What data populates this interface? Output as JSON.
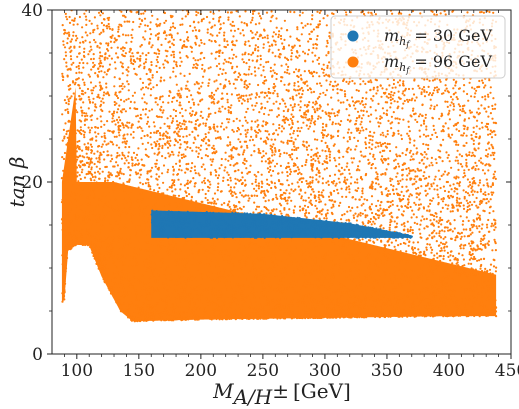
{
  "chart_data": {
    "type": "scatter",
    "xlabel": "M_{A/H±} [GeV]",
    "ylabel": "tan β",
    "xlim": [
      80,
      450
    ],
    "ylim": [
      0,
      40
    ],
    "x_ticks": [
      "100",
      "150",
      "200",
      "250",
      "300",
      "350",
      "400",
      "450"
    ],
    "y_ticks": [
      "0",
      "20",
      "40"
    ],
    "legend_position": "top-right",
    "series": [
      {
        "name": "m_{h_f} = 30 GeV",
        "legend_main": "m",
        "legend_sub": "h",
        "legend_subsub": "f",
        "legend_rest": " = 30 GeV",
        "color": "#1f77b4",
        "region": {
          "x_range": [
            160,
            370
          ],
          "y_lower": [
            [
              160,
              13.5
            ],
            [
              370,
              13.5
            ]
          ],
          "y_upper": [
            [
              160,
              16.7
            ],
            [
              250,
              16.3
            ],
            [
              320,
              15.2
            ],
            [
              370,
              13.8
            ]
          ]
        }
      },
      {
        "name": "m_{h_f} = 96 GeV",
        "legend_main": "m",
        "legend_sub": "h",
        "legend_subsub": "f",
        "legend_rest": " = 96 GeV",
        "color": "#ff7f0e",
        "region": {
          "x_range": [
            88,
            438
          ],
          "y_lower": [
            [
              88,
              6.0
            ],
            [
              90,
              6.3
            ],
            [
              93,
              12.0
            ],
            [
              100,
              12.7
            ],
            [
              110,
              12.6
            ],
            [
              120,
              9.0
            ],
            [
              135,
              5.0
            ],
            [
              145,
              3.8
            ],
            [
              200,
              4.0
            ],
            [
              300,
              4.2
            ],
            [
              400,
              4.4
            ],
            [
              438,
              4.4
            ]
          ],
          "y_upper": [
            [
              88,
              40
            ],
            [
              438,
              40
            ]
          ]
        }
      }
    ]
  }
}
